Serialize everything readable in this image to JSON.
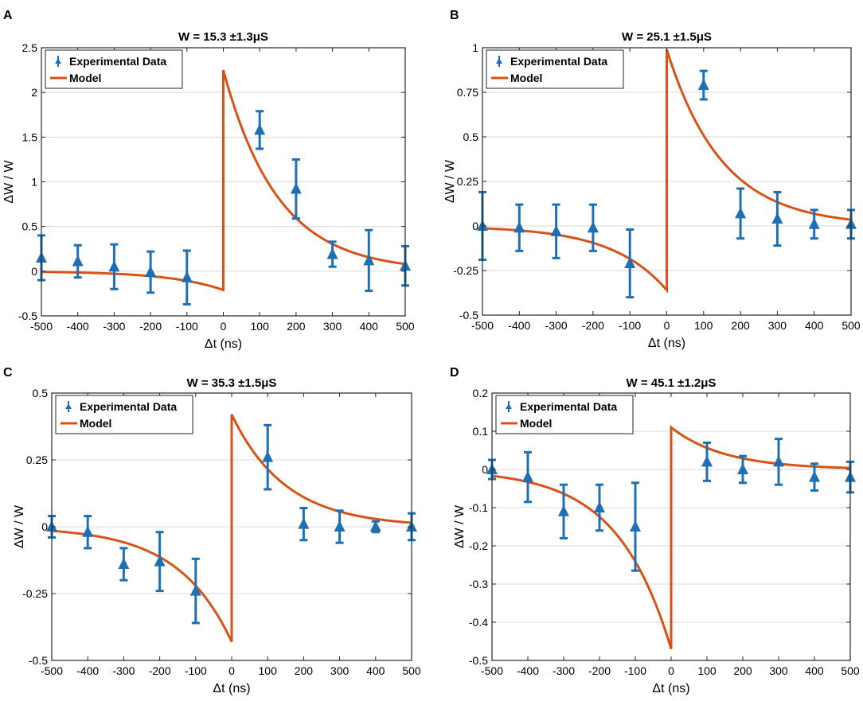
{
  "figure": {
    "series_colors": {
      "data": "#1f6fb5",
      "model": "#d95319"
    }
  },
  "chart_data": [
    {
      "panel": "A",
      "type": "line",
      "title": "W = 15.3 ±1.3μS",
      "xlabel": "Δt (ns)",
      "ylabel": "ΔW / W",
      "xlim": [
        -500,
        500
      ],
      "ylim": [
        -0.5,
        2.5
      ],
      "xticks": [
        -500,
        -400,
        -300,
        -200,
        -100,
        0,
        100,
        200,
        300,
        400,
        500
      ],
      "xtick_labels": [
        "-500",
        "-400",
        "-300",
        "-200",
        "-100",
        "0",
        "100",
        "200",
        "300",
        "400",
        "500"
      ],
      "yticks": [
        -0.5,
        0,
        0.5,
        1,
        1.5,
        2,
        2.5
      ],
      "ytick_labels": [
        "-0.5",
        "0",
        "0.5",
        "1",
        "1.5",
        "2",
        "2.5"
      ],
      "grid": "horizontal",
      "legend": {
        "position": "top-left",
        "entries": [
          "Experimental Data",
          "Model"
        ]
      },
      "series": [
        {
          "name": "Experimental Data",
          "kind": "errorbar",
          "x": [
            -500,
            -400,
            -300,
            -200,
            -100,
            100,
            200,
            300,
            400,
            500
          ],
          "y": [
            0.15,
            0.11,
            0.05,
            -0.01,
            -0.07,
            1.58,
            0.92,
            0.19,
            0.12,
            0.06
          ],
          "err": [
            0.25,
            0.18,
            0.25,
            0.23,
            0.3,
            0.21,
            0.33,
            0.14,
            0.34,
            0.22
          ]
        },
        {
          "name": "Model",
          "kind": "line",
          "left_amp": -0.21,
          "right_amp": 2.25,
          "tau": 150
        }
      ]
    },
    {
      "panel": "B",
      "type": "line",
      "title": "W = 25.1 ±1.5μS",
      "xlabel": "Δt (ns)",
      "ylabel": "ΔW / W",
      "xlim": [
        -500,
        500
      ],
      "ylim": [
        -0.5,
        1
      ],
      "xticks": [
        -500,
        -400,
        -300,
        -200,
        -100,
        0,
        100,
        200,
        300,
        400,
        500
      ],
      "xtick_labels": [
        "-500",
        "-400",
        "-300",
        "-200",
        "-100",
        "0",
        "100",
        "200",
        "300",
        "400",
        "500"
      ],
      "yticks": [
        -0.5,
        -0.25,
        0,
        0.25,
        0.5,
        0.75,
        1
      ],
      "ytick_labels": [
        "-0.5",
        "-0.25",
        "0",
        "0.25",
        "0.5",
        "0.75",
        "1"
      ],
      "grid": "horizontal",
      "legend": {
        "position": "top-left",
        "entries": [
          "Experimental Data",
          "Model"
        ]
      },
      "series": [
        {
          "name": "Experimental Data",
          "kind": "errorbar",
          "x": [
            -500,
            -400,
            -300,
            -200,
            -100,
            100,
            200,
            300,
            400,
            500
          ],
          "y": [
            0.0,
            -0.01,
            -0.03,
            -0.01,
            -0.21,
            0.79,
            0.07,
            0.04,
            0.01,
            0.01
          ],
          "err": [
            0.19,
            0.13,
            0.15,
            0.13,
            0.19,
            0.08,
            0.14,
            0.15,
            0.08,
            0.08
          ]
        },
        {
          "name": "Model",
          "kind": "line",
          "left_amp": -0.36,
          "right_amp": 0.99,
          "tau": 150
        }
      ]
    },
    {
      "panel": "C",
      "type": "line",
      "title": "W = 35.3 ±1.5μS",
      "xlabel": "Δt (ns)",
      "ylabel": "ΔW / W",
      "xlim": [
        -500,
        500
      ],
      "ylim": [
        -0.5,
        0.5
      ],
      "xticks": [
        -500,
        -400,
        -300,
        -200,
        -100,
        0,
        100,
        200,
        300,
        400,
        500
      ],
      "xtick_labels": [
        "-500",
        "-400",
        "-300",
        "-200",
        "-100",
        "0",
        "100",
        "200",
        "300",
        "400",
        "500"
      ],
      "yticks": [
        -0.5,
        -0.25,
        0,
        0.25,
        0.5
      ],
      "ytick_labels": [
        "-0.5",
        "-0.25",
        "0",
        "0.25",
        "0.5"
      ],
      "grid": "horizontal",
      "legend": {
        "position": "top-left",
        "entries": [
          "Experimental Data",
          "Model"
        ]
      },
      "series": [
        {
          "name": "Experimental Data",
          "kind": "errorbar",
          "x": [
            -500,
            -400,
            -300,
            -200,
            -100,
            100,
            200,
            300,
            400,
            500
          ],
          "y": [
            0.0,
            -0.02,
            -0.14,
            -0.13,
            -0.24,
            0.26,
            0.01,
            0.0,
            0.0,
            0.0
          ],
          "err": [
            0.04,
            0.06,
            0.06,
            0.11,
            0.12,
            0.12,
            0.06,
            0.06,
            0.02,
            0.05
          ]
        },
        {
          "name": "Model",
          "kind": "line",
          "left_amp": -0.43,
          "right_amp": 0.42,
          "tau": 150
        }
      ]
    },
    {
      "panel": "D",
      "type": "line",
      "title": "W = 45.1 ±1.2μS",
      "xlabel": "Δt (ns)",
      "ylabel": "ΔW / W",
      "xlim": [
        -500,
        500
      ],
      "ylim": [
        -0.5,
        0.2
      ],
      "xticks": [
        -500,
        -400,
        -300,
        -200,
        -100,
        0,
        100,
        200,
        300,
        400,
        500
      ],
      "xtick_labels": [
        "-500",
        "-400",
        "-300",
        "-200",
        "-100",
        "0",
        "100",
        "200",
        "300",
        "400",
        "500"
      ],
      "yticks": [
        -0.5,
        -0.4,
        -0.3,
        -0.2,
        -0.1,
        0,
        0.1,
        0.2
      ],
      "ytick_labels": [
        "-0.5",
        "-0.4",
        "-0.3",
        "-0.2",
        "-0.1",
        "0",
        "0.1",
        "0.2"
      ],
      "grid": "horizontal",
      "legend": {
        "position": "top-left",
        "entries": [
          "Experimental Data",
          "Model"
        ]
      },
      "series": [
        {
          "name": "Experimental Data",
          "kind": "errorbar",
          "x": [
            -500,
            -400,
            -300,
            -200,
            -100,
            100,
            200,
            300,
            400,
            500
          ],
          "y": [
            0.0,
            -0.02,
            -0.11,
            -0.1,
            -0.15,
            0.02,
            0.0,
            0.02,
            -0.02,
            -0.02
          ],
          "err": [
            0.025,
            0.065,
            0.07,
            0.06,
            0.115,
            0.05,
            0.035,
            0.06,
            0.035,
            0.04
          ]
        },
        {
          "name": "Model",
          "kind": "line",
          "left_amp": -0.47,
          "right_amp": 0.11,
          "tau": 150
        }
      ]
    }
  ]
}
